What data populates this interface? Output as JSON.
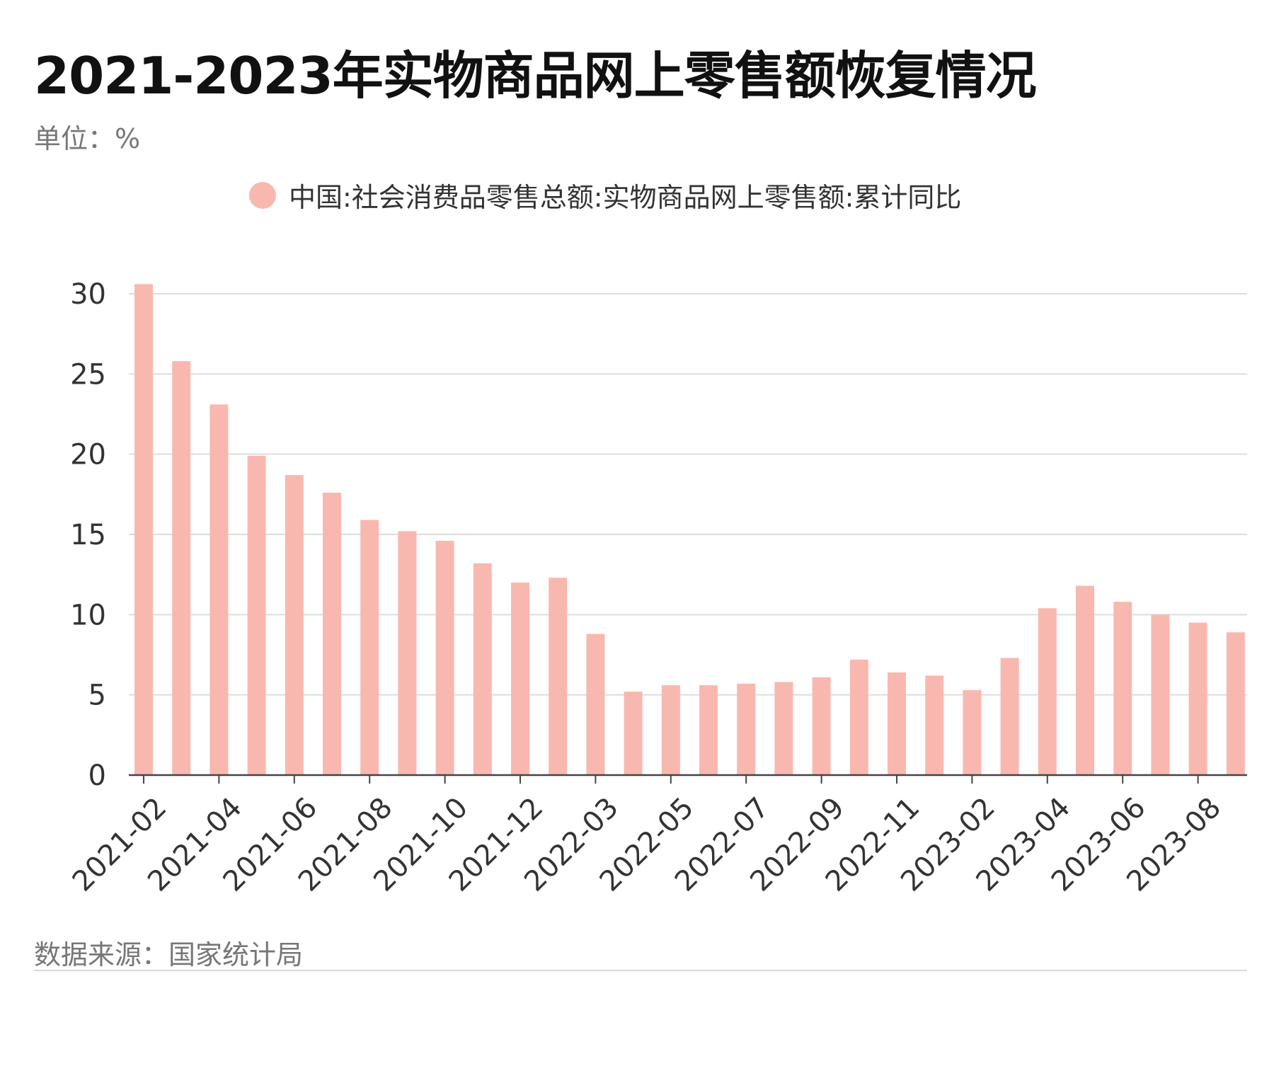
{
  "title": "2021-2023年实物商品网上零售额恢复情况",
  "unit_label": "单位：%",
  "source_label": "数据来源：国家统计局",
  "colors": {
    "bar": "#F9B8AF",
    "grid": "#dddddd",
    "axis": "#444444",
    "tick_text": "#333333"
  },
  "chart_data": {
    "type": "bar",
    "title": "2021-2023年实物商品网上零售额恢复情况",
    "xlabel": "",
    "ylabel": "%",
    "ylim": [
      0,
      30
    ],
    "yticks": [
      0,
      5,
      10,
      15,
      20,
      25,
      30
    ],
    "grid": true,
    "legend_position": "top-center",
    "categories": [
      "2021-02",
      "2021-03",
      "2021-04",
      "2021-05",
      "2021-06",
      "2021-07",
      "2021-08",
      "2021-09",
      "2021-10",
      "2021-11",
      "2021-12",
      "2022-02",
      "2022-03",
      "2022-04",
      "2022-05",
      "2022-06",
      "2022-07",
      "2022-08",
      "2022-09",
      "2022-10",
      "2022-11",
      "2022-12",
      "2023-02",
      "2023-03",
      "2023-04",
      "2023-05",
      "2023-06",
      "2023-07",
      "2023-08",
      "2023-09"
    ],
    "shown_tick_labels": [
      "2021-02",
      "2021-04",
      "2021-06",
      "2021-08",
      "2021-10",
      "2021-12",
      "2022-03",
      "2022-05",
      "2022-07",
      "2022-09",
      "2022-11",
      "2023-02",
      "2023-04",
      "2023-06",
      "2023-08"
    ],
    "series": [
      {
        "name": "中国:社会消费品零售总额:实物商品网上零售额:累计同比",
        "values": [
          30.6,
          25.8,
          23.1,
          19.9,
          18.7,
          17.6,
          15.9,
          15.2,
          14.6,
          13.2,
          12.0,
          12.3,
          8.8,
          5.2,
          5.6,
          5.6,
          5.7,
          5.8,
          6.1,
          7.2,
          6.4,
          6.2,
          5.3,
          7.3,
          10.4,
          11.8,
          10.8,
          10.0,
          9.5,
          8.9
        ]
      }
    ]
  }
}
